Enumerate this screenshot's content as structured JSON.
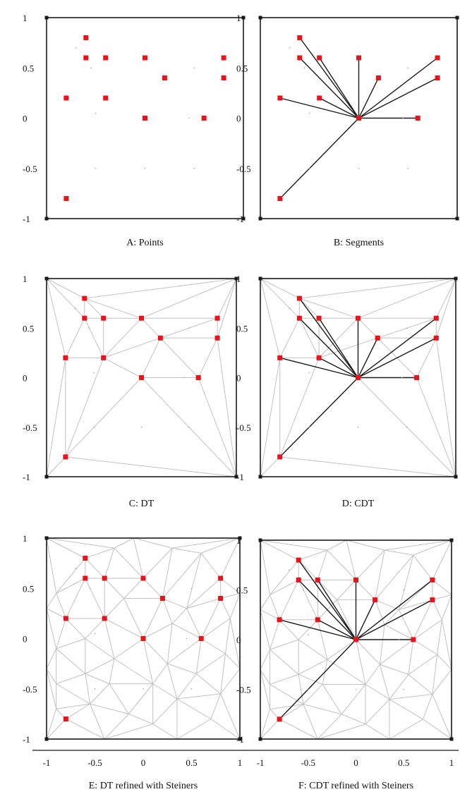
{
  "figure": {
    "colors": {
      "frame": "#1a1a1a",
      "point": "#e8141a",
      "segment": "#1a1a1a",
      "mesh": "#c2c2c2",
      "faint": "#9a9a9a"
    },
    "tick_labels": {
      "y": [
        "1",
        "0.5",
        "0",
        "-0.5",
        "-1"
      ],
      "x": [
        "-1",
        "-0.5",
        "0",
        "0.5",
        "1"
      ]
    },
    "points": [
      [
        -0.6,
        0.8
      ],
      [
        -0.6,
        0.6
      ],
      [
        -0.4,
        0.6
      ],
      [
        0,
        0.6
      ],
      [
        0.8,
        0.6
      ],
      [
        0.2,
        0.4
      ],
      [
        0.8,
        0.4
      ],
      [
        -0.8,
        0.2
      ],
      [
        -0.4,
        0.2
      ],
      [
        0,
        0
      ],
      [
        0.6,
        0
      ],
      [
        -0.8,
        -0.8
      ]
    ],
    "faint_points": [
      [
        -0.7,
        0.7
      ],
      [
        -0.55,
        0.5
      ],
      [
        -0.5,
        0.05
      ],
      [
        0.5,
        0.5
      ],
      [
        0.45,
        0.0
      ],
      [
        -0.5,
        -0.5
      ],
      [
        0,
        -0.5
      ],
      [
        0.5,
        -0.5
      ]
    ],
    "segments": [
      [
        [
          -0.6,
          0.8
        ],
        [
          0,
          0
        ]
      ],
      [
        [
          -0.6,
          0.6
        ],
        [
          0,
          0
        ]
      ],
      [
        [
          -0.4,
          0.6
        ],
        [
          0,
          0
        ]
      ],
      [
        [
          0,
          0.6
        ],
        [
          0,
          0
        ]
      ],
      [
        [
          0.2,
          0.4
        ],
        [
          0,
          0
        ]
      ],
      [
        [
          0.8,
          0.6
        ],
        [
          0,
          0
        ]
      ],
      [
        [
          0.8,
          0.4
        ],
        [
          0,
          0
        ]
      ],
      [
        [
          -0.8,
          0.2
        ],
        [
          0,
          0
        ]
      ],
      [
        [
          -0.4,
          0.2
        ],
        [
          0,
          0
        ]
      ],
      [
        [
          0.6,
          0
        ],
        [
          0,
          0
        ]
      ],
      [
        [
          -0.8,
          -0.8
        ],
        [
          0,
          0
        ]
      ]
    ],
    "steiner_points": [
      [
        -0.3,
        0.9
      ],
      [
        0.3,
        0.9
      ],
      [
        0.6,
        0.85
      ],
      [
        -0.9,
        0.45
      ],
      [
        -0.2,
        0.4
      ],
      [
        0.45,
        0.3
      ],
      [
        0.9,
        0.2
      ],
      [
        -0.6,
        0.0
      ],
      [
        0.3,
        0.15
      ],
      [
        0.85,
        -0.15
      ],
      [
        -0.9,
        -0.1
      ],
      [
        -0.3,
        -0.2
      ],
      [
        0.25,
        -0.25
      ],
      [
        -0.6,
        -0.35
      ],
      [
        0.55,
        -0.35
      ],
      [
        -0.9,
        -0.45
      ],
      [
        -0.35,
        -0.45
      ],
      [
        0.1,
        -0.45
      ],
      [
        0.35,
        -0.6
      ],
      [
        -0.55,
        -0.65
      ],
      [
        0.8,
        -0.55
      ],
      [
        0.7,
        -0.8
      ],
      [
        -0.15,
        -0.75
      ],
      [
        -0.9,
        -0.7
      ],
      [
        0.1,
        -0.85
      ]
    ],
    "panels": [
      {
        "id": "A",
        "caption": "A: Points",
        "show_segments": false,
        "mesh": "none"
      },
      {
        "id": "B",
        "caption": "B: Segments",
        "show_segments": true,
        "mesh": "none"
      },
      {
        "id": "C",
        "caption": "C: DT",
        "show_segments": false,
        "mesh": "dt"
      },
      {
        "id": "D",
        "caption": "D: CDT",
        "show_segments": true,
        "mesh": "dt"
      },
      {
        "id": "E",
        "caption": "E: DT refined with Steiners",
        "show_segments": false,
        "mesh": "refined"
      },
      {
        "id": "F",
        "caption": "F: CDT refined with Steiners",
        "show_segments": true,
        "mesh": "refined"
      }
    ]
  }
}
